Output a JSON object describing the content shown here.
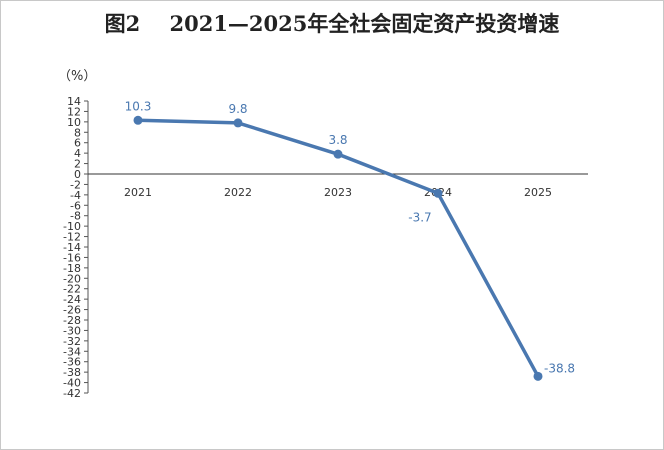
{
  "chart_data": {
    "type": "line",
    "title": "图2    2021—2025年全社会固定资产投资增速",
    "ylabel": "（%）",
    "xlabel": "",
    "categories": [
      "2021",
      "2022",
      "2023",
      "2024",
      "2025"
    ],
    "series": [
      {
        "values": [
          10.3,
          9.8,
          3.8,
          -3.7,
          -38.8
        ]
      }
    ],
    "data_labels": [
      "10.3",
      "9.8",
      "3.8",
      "-3.7",
      "-38.8"
    ],
    "ylim": [
      -42,
      14
    ],
    "yticks": [
      14,
      12,
      10,
      8,
      6,
      4,
      2,
      0,
      -2,
      -4,
      -6,
      -8,
      -10,
      -12,
      -14,
      -16,
      -18,
      -20,
      -22,
      -24,
      -26,
      -28,
      -30,
      -32,
      -34,
      -36,
      -38,
      -40,
      -42
    ],
    "grid": false,
    "legend": "none",
    "line_color": "#4a78b0"
  }
}
